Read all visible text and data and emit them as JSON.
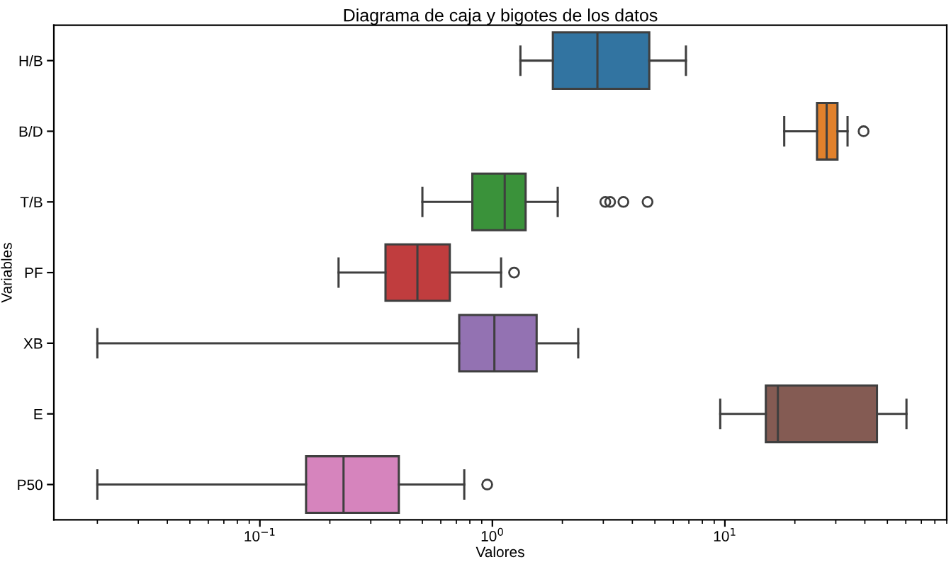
{
  "chart_data": {
    "type": "box",
    "title": "Diagrama de caja y bigotes de los datos",
    "xlabel": "Valores",
    "ylabel": "Variables",
    "orientation": "horizontal",
    "log": "x",
    "categories": [
      "H/B",
      "B/D",
      "T/B",
      "PF",
      "XB",
      "E",
      "P50"
    ],
    "colors": [
      "#3274a1",
      "#e1812c",
      "#3a923a",
      "#c03d3e",
      "#9372b2",
      "#845b53",
      "#d684bd"
    ],
    "boxes": [
      {
        "low": 1.32,
        "q1": 1.82,
        "median": 2.83,
        "q3": 4.73,
        "high": 6.8
      },
      {
        "low": 18.0,
        "q1": 24.9,
        "median": 27.4,
        "q3": 30.5,
        "high": 33.7,
        "outliers": [
          39.5
        ]
      },
      {
        "low": 0.5,
        "q1": 0.82,
        "median": 1.13,
        "q3": 1.39,
        "high": 1.91,
        "outliers": [
          3.06,
          3.21,
          3.66,
          4.65
        ]
      },
      {
        "low": 0.218,
        "q1": 0.347,
        "median": 0.476,
        "q3": 0.656,
        "high": 1.09,
        "outliers": [
          1.24
        ]
      },
      {
        "low": 0.02,
        "q1": 0.72,
        "median": 1.02,
        "q3": 1.55,
        "high": 2.34
      },
      {
        "low": 9.55,
        "q1": 15.0,
        "median": 16.9,
        "q3": 45.1,
        "high": 60.4
      },
      {
        "low": 0.02,
        "q1": 0.158,
        "median": 0.229,
        "q3": 0.396,
        "high": 0.757,
        "outliers": [
          0.95
        ]
      }
    ],
    "xlim": [
      0.013,
      90
    ],
    "xticks": [
      {
        "value": 0.1,
        "label": "10$^{−1}$"
      },
      {
        "value": 1,
        "label": "10$^{0}$"
      },
      {
        "value": 10,
        "label": "10$^{1}$"
      }
    ],
    "grid": false
  }
}
